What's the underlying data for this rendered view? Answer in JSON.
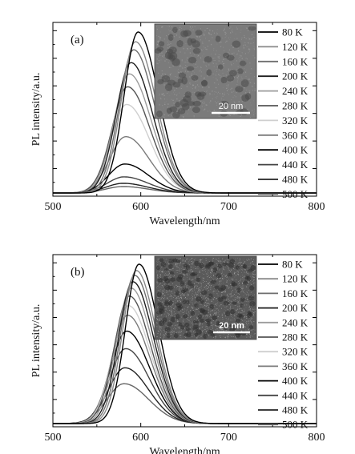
{
  "chart_data": [
    {
      "type": "line",
      "panel_label": "(a)",
      "xlabel": "Wavelength/nm",
      "ylabel": "PL intensity/a.u.",
      "xlim": [
        500,
        800
      ],
      "ylim": [
        0,
        1.05
      ],
      "x_ticks": [
        500,
        600,
        700,
        800
      ],
      "y_ticks_labeled": false,
      "legend_position": "right",
      "inset": {
        "content": "TEM micrograph",
        "scale_bar_label": "20 nm",
        "position": "top-center"
      },
      "series": [
        {
          "name": "80 K",
          "peak_nm": 597,
          "peak": 1.0,
          "fwhm_nm": 46
        },
        {
          "name": "120 K",
          "peak_nm": 594,
          "peak": 0.94,
          "fwhm_nm": 47
        },
        {
          "name": "160 K",
          "peak_nm": 592,
          "peak": 0.89,
          "fwhm_nm": 48
        },
        {
          "name": "200 K",
          "peak_nm": 589,
          "peak": 0.81,
          "fwhm_nm": 49
        },
        {
          "name": "240 K",
          "peak_nm": 587,
          "peak": 0.74,
          "fwhm_nm": 50
        },
        {
          "name": "280 K",
          "peak_nm": 585,
          "peak": 0.66,
          "fwhm_nm": 51
        },
        {
          "name": "320 K",
          "peak_nm": 584,
          "peak": 0.55,
          "fwhm_nm": 52
        },
        {
          "name": "360 K",
          "peak_nm": 583,
          "peak": 0.35,
          "fwhm_nm": 53
        },
        {
          "name": "400 K",
          "peak_nm": 582,
          "peak": 0.18,
          "fwhm_nm": 54
        },
        {
          "name": "440 K",
          "peak_nm": 581,
          "peak": 0.1,
          "fwhm_nm": 55
        },
        {
          "name": "480 K",
          "peak_nm": 580,
          "peak": 0.06,
          "fwhm_nm": 56
        },
        {
          "name": "500 K",
          "peak_nm": 580,
          "peak": 0.04,
          "fwhm_nm": 57
        }
      ]
    },
    {
      "type": "line",
      "panel_label": "(b)",
      "xlabel": "Wavelength/nm",
      "ylabel": "PL intensity/a.u.",
      "xlim": [
        500,
        800
      ],
      "ylim": [
        0,
        1.05
      ],
      "x_ticks": [
        500,
        600,
        700,
        800
      ],
      "y_ticks_labeled": false,
      "legend_position": "right",
      "inset": {
        "content": "TEM micrograph",
        "scale_bar_label": "20 nm",
        "position": "top-center"
      },
      "series": [
        {
          "name": "80 K",
          "peak_nm": 598,
          "peak": 1.0,
          "fwhm_nm": 44
        },
        {
          "name": "120 K",
          "peak_nm": 595,
          "peak": 0.96,
          "fwhm_nm": 45
        },
        {
          "name": "160 K",
          "peak_nm": 593,
          "peak": 0.93,
          "fwhm_nm": 46
        },
        {
          "name": "200 K",
          "peak_nm": 591,
          "peak": 0.89,
          "fwhm_nm": 47
        },
        {
          "name": "240 K",
          "peak_nm": 589,
          "peak": 0.85,
          "fwhm_nm": 48
        },
        {
          "name": "280 K",
          "peak_nm": 587,
          "peak": 0.8,
          "fwhm_nm": 49
        },
        {
          "name": "320 K",
          "peak_nm": 586,
          "peak": 0.74,
          "fwhm_nm": 50
        },
        {
          "name": "360 K",
          "peak_nm": 585,
          "peak": 0.68,
          "fwhm_nm": 51
        },
        {
          "name": "400 K",
          "peak_nm": 584,
          "peak": 0.58,
          "fwhm_nm": 52
        },
        {
          "name": "440 K",
          "peak_nm": 583,
          "peak": 0.47,
          "fwhm_nm": 53
        },
        {
          "name": "480 K",
          "peak_nm": 582,
          "peak": 0.35,
          "fwhm_nm": 54
        },
        {
          "name": "500 K",
          "peak_nm": 581,
          "peak": 0.25,
          "fwhm_nm": 56
        }
      ]
    }
  ],
  "colors": {
    "series": [
      "#000000",
      "#8a8a8a",
      "#6f6f6f",
      "#1e1e1e",
      "#9c9c9c",
      "#555555",
      "#cfcfcf",
      "#7b7b7b",
      "#000000",
      "#444444",
      "#222222",
      "#666666"
    ],
    "inset_a_bg": "#7b7b7b",
    "inset_b_bg": "#5a5a5a"
  }
}
